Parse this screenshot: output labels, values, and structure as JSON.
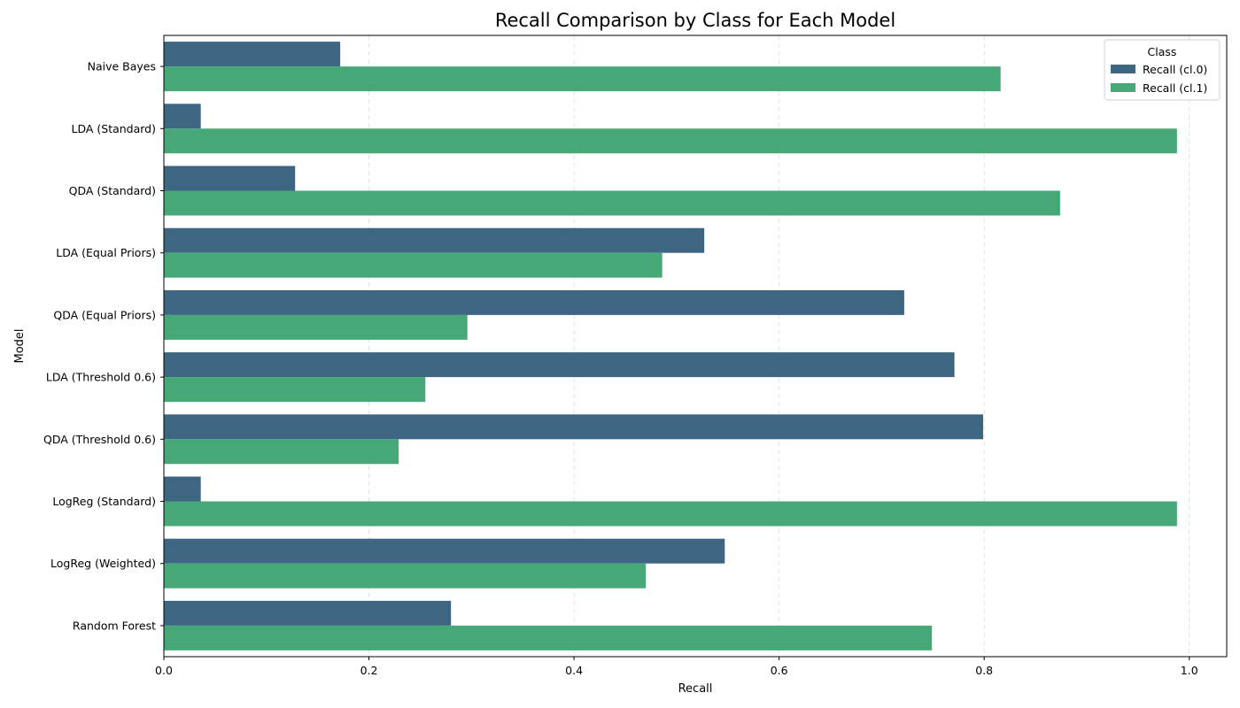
{
  "chart_data": {
    "type": "bar",
    "orientation": "horizontal",
    "title": "Recall Comparison by Class for Each Model",
    "xlabel": "Recall",
    "ylabel": "Model",
    "xlim": [
      0,
      1.0365
    ],
    "xticks": [
      0.0,
      0.2,
      0.4,
      0.6,
      0.8,
      1.0
    ],
    "xtick_labels": [
      "0.0",
      "0.2",
      "0.4",
      "0.6",
      "0.8",
      "1.0"
    ],
    "grid": "x-dashed",
    "legend": {
      "title": "Class",
      "placement": "top-right"
    },
    "categories": [
      "Naive Bayes",
      "LDA (Standard)",
      "QDA (Standard)",
      "LDA (Equal Priors)",
      "QDA (Equal Priors)",
      "LDA (Threshold 0.6)",
      "QDA (Threshold 0.6)",
      "LogReg (Standard)",
      "LogReg (Weighted)",
      "Random Forest"
    ],
    "series": [
      {
        "name": "Recall (cl.0)",
        "color": "#3e6683",
        "values": [
          0.172,
          0.036,
          0.128,
          0.527,
          0.722,
          0.771,
          0.799,
          0.036,
          0.547,
          0.28
        ]
      },
      {
        "name": "Recall (cl.1)",
        "color": "#46a877",
        "values": [
          0.816,
          0.988,
          0.874,
          0.486,
          0.296,
          0.255,
          0.229,
          0.988,
          0.47,
          0.749
        ]
      }
    ]
  }
}
